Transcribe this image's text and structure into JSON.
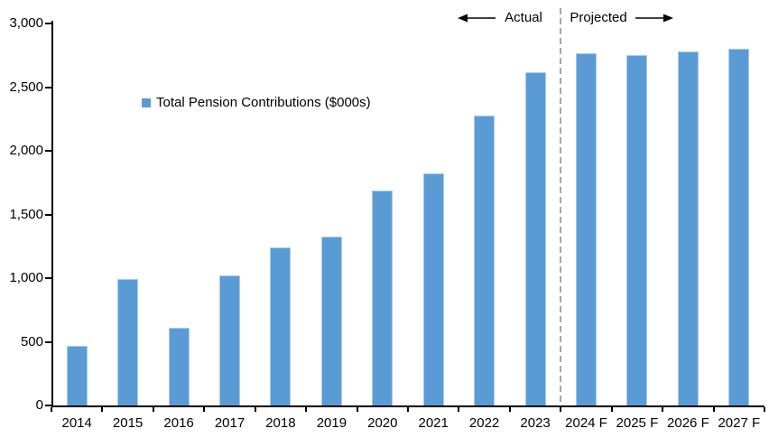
{
  "chart_data": {
    "type": "bar",
    "title": "",
    "legend": "Total Pension Contributions ($000s)",
    "categories": [
      "2014",
      "2015",
      "2016",
      "2017",
      "2018",
      "2019",
      "2020",
      "2021",
      "2022",
      "2023",
      "2024 F",
      "2025 F",
      "2026 F",
      "2027 F"
    ],
    "values": [
      470,
      995,
      610,
      1020,
      1240,
      1325,
      1685,
      1820,
      2280,
      2620,
      2765,
      2755,
      2780,
      2805
    ],
    "ylim": [
      0,
      3000
    ],
    "ytick_values": [
      0,
      500,
      1000,
      1500,
      2000,
      2500,
      3000
    ],
    "ytick_labels": [
      "0",
      "500",
      "1,000",
      "1,500",
      "2,000",
      "2,500",
      "3,000"
    ],
    "grid": false,
    "legend_position": "inside-upper-left",
    "bar_color": "#5B9BD5",
    "axis_color": "#000000",
    "text_color": "#000000",
    "divider_color": "#A6A6A6",
    "divider_after_category": "2023",
    "annotations": {
      "actual_label": "Actual",
      "projected_label": "Projected"
    }
  }
}
